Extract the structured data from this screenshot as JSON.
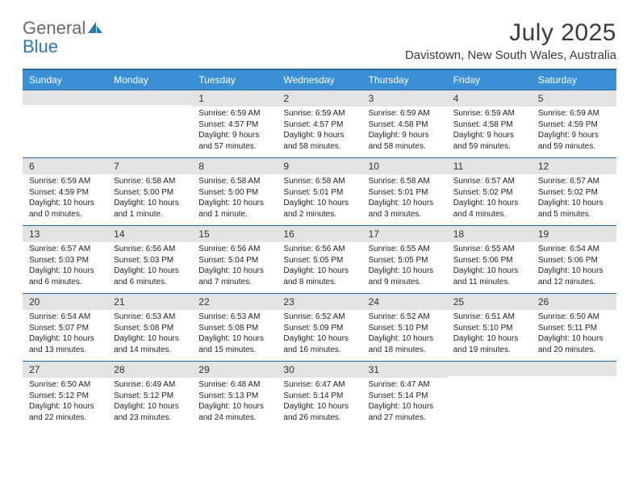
{
  "brand": {
    "word1": "General",
    "word2": "Blue"
  },
  "title": "July 2025",
  "location": "Davistown, New South Wales, Australia",
  "colors": {
    "header_bg": "#3b8fd4",
    "header_border": "#2a6a9a",
    "daynum_bg": "#e3e3e3",
    "brand_gray": "#6a6a6a",
    "brand_blue": "#2878b8"
  },
  "weekdays": [
    "Sunday",
    "Monday",
    "Tuesday",
    "Wednesday",
    "Thursday",
    "Friday",
    "Saturday"
  ],
  "weeks": [
    [
      {
        "n": "",
        "sr": "",
        "ss": "",
        "dl": ""
      },
      {
        "n": "",
        "sr": "",
        "ss": "",
        "dl": ""
      },
      {
        "n": "1",
        "sr": "Sunrise: 6:59 AM",
        "ss": "Sunset: 4:57 PM",
        "dl": "Daylight: 9 hours and 57 minutes."
      },
      {
        "n": "2",
        "sr": "Sunrise: 6:59 AM",
        "ss": "Sunset: 4:57 PM",
        "dl": "Daylight: 9 hours and 58 minutes."
      },
      {
        "n": "3",
        "sr": "Sunrise: 6:59 AM",
        "ss": "Sunset: 4:58 PM",
        "dl": "Daylight: 9 hours and 58 minutes."
      },
      {
        "n": "4",
        "sr": "Sunrise: 6:59 AM",
        "ss": "Sunset: 4:58 PM",
        "dl": "Daylight: 9 hours and 59 minutes."
      },
      {
        "n": "5",
        "sr": "Sunrise: 6:59 AM",
        "ss": "Sunset: 4:59 PM",
        "dl": "Daylight: 9 hours and 59 minutes."
      }
    ],
    [
      {
        "n": "6",
        "sr": "Sunrise: 6:59 AM",
        "ss": "Sunset: 4:59 PM",
        "dl": "Daylight: 10 hours and 0 minutes."
      },
      {
        "n": "7",
        "sr": "Sunrise: 6:58 AM",
        "ss": "Sunset: 5:00 PM",
        "dl": "Daylight: 10 hours and 1 minute."
      },
      {
        "n": "8",
        "sr": "Sunrise: 6:58 AM",
        "ss": "Sunset: 5:00 PM",
        "dl": "Daylight: 10 hours and 1 minute."
      },
      {
        "n": "9",
        "sr": "Sunrise: 6:58 AM",
        "ss": "Sunset: 5:01 PM",
        "dl": "Daylight: 10 hours and 2 minutes."
      },
      {
        "n": "10",
        "sr": "Sunrise: 6:58 AM",
        "ss": "Sunset: 5:01 PM",
        "dl": "Daylight: 10 hours and 3 minutes."
      },
      {
        "n": "11",
        "sr": "Sunrise: 6:57 AM",
        "ss": "Sunset: 5:02 PM",
        "dl": "Daylight: 10 hours and 4 minutes."
      },
      {
        "n": "12",
        "sr": "Sunrise: 6:57 AM",
        "ss": "Sunset: 5:02 PM",
        "dl": "Daylight: 10 hours and 5 minutes."
      }
    ],
    [
      {
        "n": "13",
        "sr": "Sunrise: 6:57 AM",
        "ss": "Sunset: 5:03 PM",
        "dl": "Daylight: 10 hours and 6 minutes."
      },
      {
        "n": "14",
        "sr": "Sunrise: 6:56 AM",
        "ss": "Sunset: 5:03 PM",
        "dl": "Daylight: 10 hours and 6 minutes."
      },
      {
        "n": "15",
        "sr": "Sunrise: 6:56 AM",
        "ss": "Sunset: 5:04 PM",
        "dl": "Daylight: 10 hours and 7 minutes."
      },
      {
        "n": "16",
        "sr": "Sunrise: 6:56 AM",
        "ss": "Sunset: 5:05 PM",
        "dl": "Daylight: 10 hours and 8 minutes."
      },
      {
        "n": "17",
        "sr": "Sunrise: 6:55 AM",
        "ss": "Sunset: 5:05 PM",
        "dl": "Daylight: 10 hours and 9 minutes."
      },
      {
        "n": "18",
        "sr": "Sunrise: 6:55 AM",
        "ss": "Sunset: 5:06 PM",
        "dl": "Daylight: 10 hours and 11 minutes."
      },
      {
        "n": "19",
        "sr": "Sunrise: 6:54 AM",
        "ss": "Sunset: 5:06 PM",
        "dl": "Daylight: 10 hours and 12 minutes."
      }
    ],
    [
      {
        "n": "20",
        "sr": "Sunrise: 6:54 AM",
        "ss": "Sunset: 5:07 PM",
        "dl": "Daylight: 10 hours and 13 minutes."
      },
      {
        "n": "21",
        "sr": "Sunrise: 6:53 AM",
        "ss": "Sunset: 5:08 PM",
        "dl": "Daylight: 10 hours and 14 minutes."
      },
      {
        "n": "22",
        "sr": "Sunrise: 6:53 AM",
        "ss": "Sunset: 5:08 PM",
        "dl": "Daylight: 10 hours and 15 minutes."
      },
      {
        "n": "23",
        "sr": "Sunrise: 6:52 AM",
        "ss": "Sunset: 5:09 PM",
        "dl": "Daylight: 10 hours and 16 minutes."
      },
      {
        "n": "24",
        "sr": "Sunrise: 6:52 AM",
        "ss": "Sunset: 5:10 PM",
        "dl": "Daylight: 10 hours and 18 minutes."
      },
      {
        "n": "25",
        "sr": "Sunrise: 6:51 AM",
        "ss": "Sunset: 5:10 PM",
        "dl": "Daylight: 10 hours and 19 minutes."
      },
      {
        "n": "26",
        "sr": "Sunrise: 6:50 AM",
        "ss": "Sunset: 5:11 PM",
        "dl": "Daylight: 10 hours and 20 minutes."
      }
    ],
    [
      {
        "n": "27",
        "sr": "Sunrise: 6:50 AM",
        "ss": "Sunset: 5:12 PM",
        "dl": "Daylight: 10 hours and 22 minutes."
      },
      {
        "n": "28",
        "sr": "Sunrise: 6:49 AM",
        "ss": "Sunset: 5:12 PM",
        "dl": "Daylight: 10 hours and 23 minutes."
      },
      {
        "n": "29",
        "sr": "Sunrise: 6:48 AM",
        "ss": "Sunset: 5:13 PM",
        "dl": "Daylight: 10 hours and 24 minutes."
      },
      {
        "n": "30",
        "sr": "Sunrise: 6:47 AM",
        "ss": "Sunset: 5:14 PM",
        "dl": "Daylight: 10 hours and 26 minutes."
      },
      {
        "n": "31",
        "sr": "Sunrise: 6:47 AM",
        "ss": "Sunset: 5:14 PM",
        "dl": "Daylight: 10 hours and 27 minutes."
      },
      {
        "n": "",
        "sr": "",
        "ss": "",
        "dl": ""
      },
      {
        "n": "",
        "sr": "",
        "ss": "",
        "dl": ""
      }
    ]
  ]
}
